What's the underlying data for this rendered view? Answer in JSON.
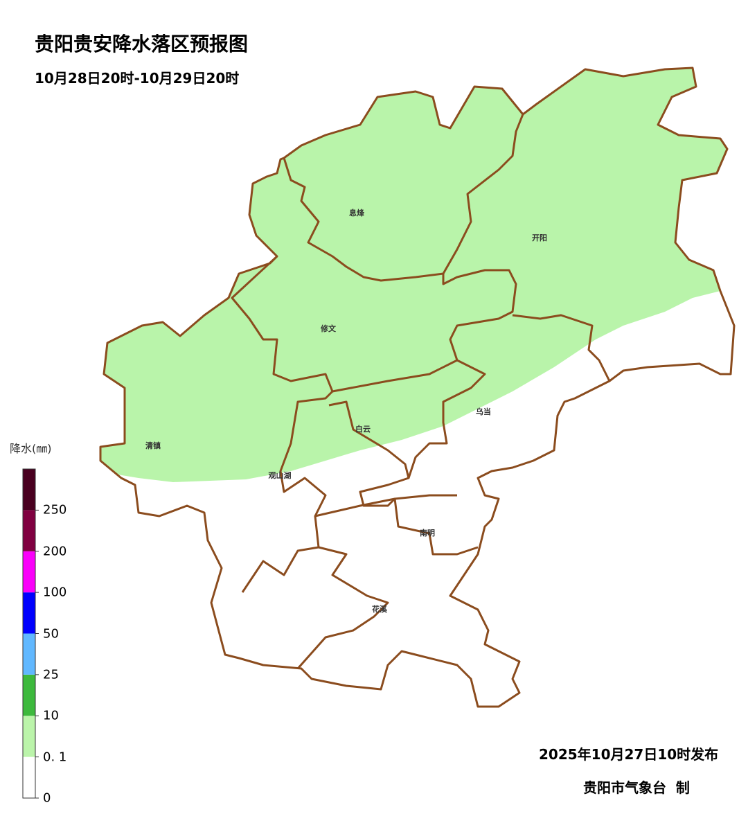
{
  "title": "贵阳贵安降水落区预报图",
  "subtitle": "10月28日20时-10月29日20时",
  "issued": "2025年10月27日10时发布",
  "maker": "贵阳市气象台  制",
  "legend": {
    "title": "降水(㎜)",
    "bins": [
      {
        "label": "0",
        "color": "#ffffff"
      },
      {
        "label": "0. 1",
        "color": "#bbf4aa"
      },
      {
        "label": "10",
        "color": "#3db93d"
      },
      {
        "label": "25",
        "color": "#61b8ff"
      },
      {
        "label": "50",
        "color": "#0000fe"
      },
      {
        "label": "100",
        "color": "#fa00fa"
      },
      {
        "label": "200",
        "color": "#800040"
      },
      {
        "label": "250",
        "color": "#4a0020"
      }
    ]
  },
  "regions": [
    "息烽",
    "开阳",
    "修文",
    "乌当",
    "白云",
    "清镇",
    "观山湖",
    "南明",
    "花溪"
  ],
  "forecast": {
    "rain_category": "0.1-10",
    "fill_color": "#b9f4aa",
    "border_color": "#8b4c1e"
  }
}
